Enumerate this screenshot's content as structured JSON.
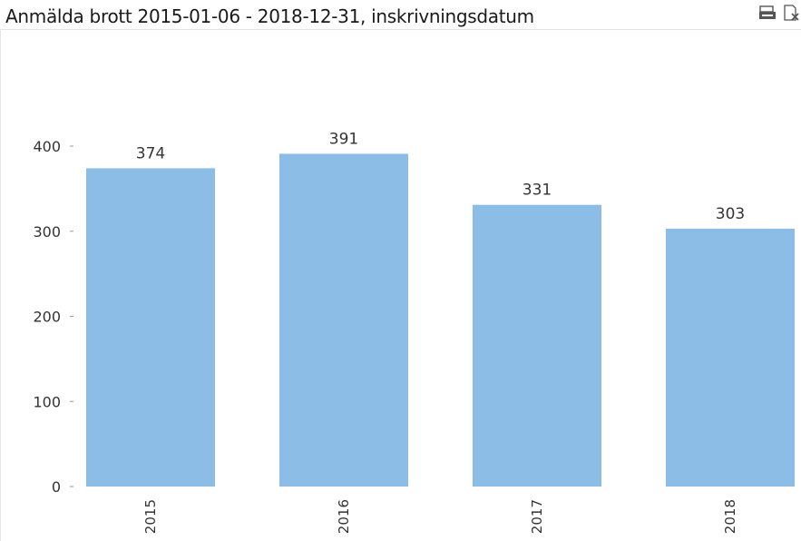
{
  "window": {
    "title": "Anmälda brott 2015-01-06 - 2018-12-31, inskrivningsdatum",
    "tools": [
      {
        "name": "print-icon"
      },
      {
        "name": "export-excel-icon"
      }
    ]
  },
  "chart_data": {
    "type": "bar",
    "categories": [
      "2015",
      "2016",
      "2017",
      "2018"
    ],
    "values": [
      374,
      391,
      331,
      303
    ],
    "data_labels": [
      "374",
      "391",
      "331",
      "303"
    ],
    "yticks": [
      0,
      100,
      200,
      300,
      400
    ],
    "ylim": [
      0,
      400
    ],
    "title": "Anmälda brott 2015-01-06 - 2018-12-31, inskrivningsdatum",
    "xlabel": "",
    "ylabel": "",
    "grid": false,
    "legend": "none",
    "bar_color": "#8bbde6"
  }
}
